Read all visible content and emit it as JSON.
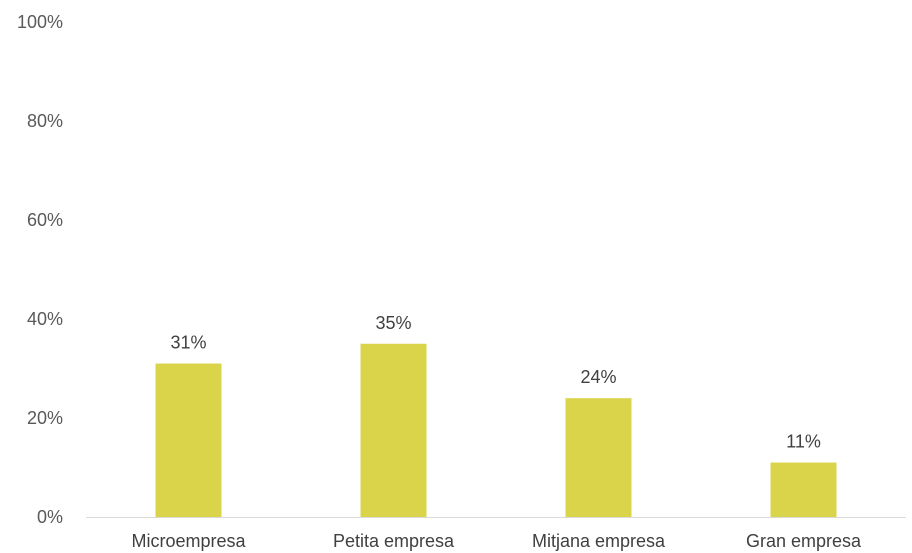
{
  "chart_data": {
    "type": "bar",
    "categories": [
      "Microempresa",
      "Petita empresa",
      "Mitjana empresa",
      "Gran empresa"
    ],
    "values": [
      31,
      35,
      24,
      11
    ],
    "value_labels": [
      "31%",
      "35%",
      "24%",
      "11%"
    ],
    "ylim": [
      0,
      100
    ],
    "yticks": [
      0,
      20,
      40,
      60,
      80,
      100
    ],
    "ytick_labels": [
      "0%",
      "20%",
      "40%",
      "60%",
      "80%",
      "100%"
    ],
    "grid": false,
    "legend": "none",
    "bar_color": "#d9d44a",
    "axis_color": "#d9d9d9"
  }
}
